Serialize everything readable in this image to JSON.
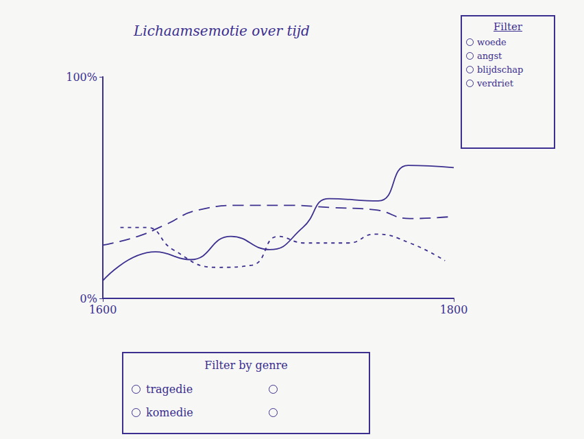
{
  "chart_data": {
    "type": "line",
    "title": "Lichaamsemotie over tijd",
    "xlim": [
      1600,
      1800
    ],
    "xticks": [
      1600,
      1800
    ],
    "ylim": [
      0,
      100
    ],
    "yticks": [
      {
        "value": 0,
        "label": "0%"
      },
      {
        "value": 100,
        "label": "100%"
      }
    ],
    "grid": false,
    "series": [
      {
        "color": "#3b2f8f",
        "line_style": "solid",
        "x": [
          1600,
          1630,
          1650,
          1673,
          1695,
          1714,
          1729,
          1757,
          1774,
          1800
        ],
        "values": [
          8,
          21,
          17.5,
          28,
          22,
          32,
          45,
          44,
          60,
          59
        ]
      },
      {
        "color": "#3b2f8f",
        "line_style": "long-dash",
        "x": [
          1600,
          1620,
          1635,
          1655,
          1680,
          1705,
          1730,
          1755,
          1775,
          1800
        ],
        "values": [
          24,
          28,
          33,
          40,
          42,
          42,
          41,
          40,
          36,
          37
        ]
      },
      {
        "color": "#3b2f8f",
        "line_style": "short-dash",
        "x": [
          1610,
          1625,
          1640,
          1665,
          1685,
          1700,
          1715,
          1740,
          1755,
          1775,
          1795
        ],
        "values": [
          32,
          32,
          22,
          14,
          15,
          28,
          25,
          25,
          29,
          25,
          17
        ]
      }
    ]
  },
  "filters": [
    {
      "title": "Filter",
      "options": [
        "woede",
        "angst",
        "blijdschap",
        "verdriet"
      ]
    },
    {
      "title": "Filter by genre",
      "options": [
        "tragedie",
        "komedie"
      ]
    }
  ]
}
